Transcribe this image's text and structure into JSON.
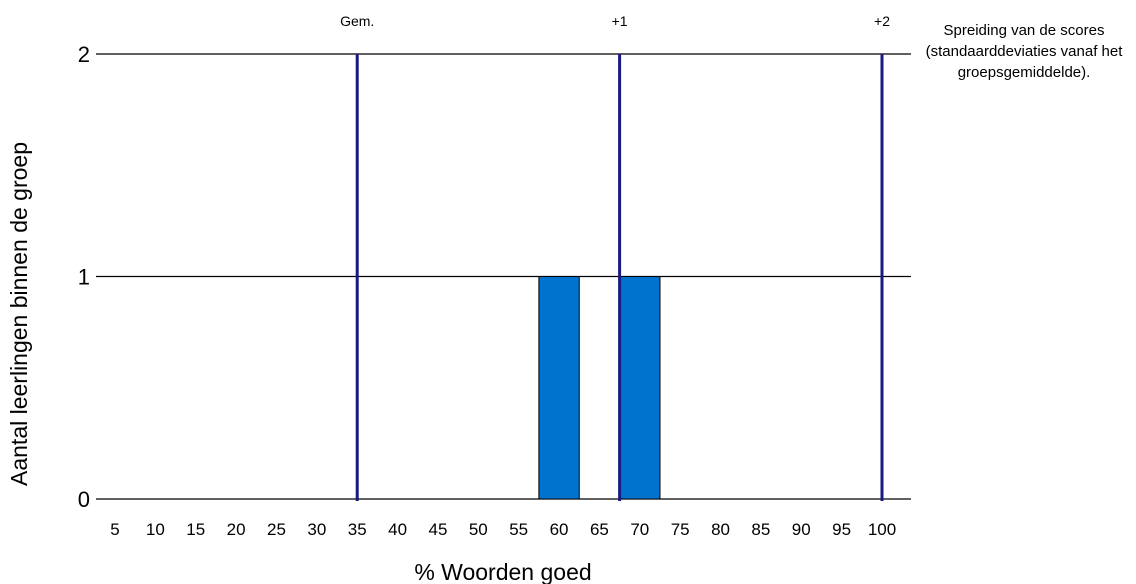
{
  "chart_data": {
    "type": "bar",
    "xlabel": "% Woorden goed",
    "ylabel": "Aantal leerlingen binnen de groep",
    "categories": [
      "5",
      "10",
      "15",
      "20",
      "25",
      "30",
      "35",
      "40",
      "45",
      "50",
      "55",
      "60",
      "65",
      "70",
      "75",
      "80",
      "85",
      "90",
      "95",
      "100"
    ],
    "bars": [
      {
        "x": 60,
        "value": 1
      },
      {
        "x": 70,
        "value": 1
      }
    ],
    "xlim": [
      2,
      103
    ],
    "ylim": [
      0,
      2
    ],
    "yticks": [
      0,
      1,
      2
    ],
    "grid": true,
    "bar_color": "#0073cf",
    "reference_lines": [
      {
        "label": "Gem.",
        "x": 35
      },
      {
        "label": "+1",
        "x": 67.5
      },
      {
        "label": "+2",
        "x": 100
      }
    ],
    "reference_line_color": "#1a1a80",
    "note": "Spreiding van de scores (standaarddeviaties vanaf het groepsgemiddelde)."
  }
}
